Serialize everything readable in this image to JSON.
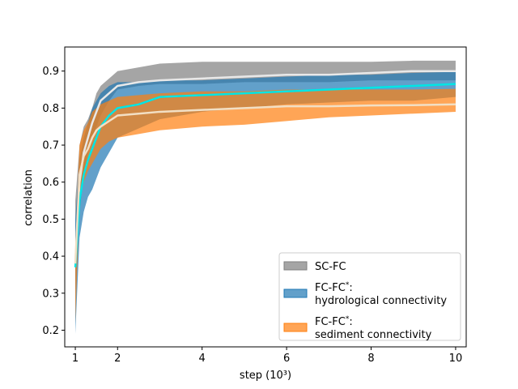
{
  "chart_data": {
    "type": "area",
    "title": "",
    "xlabel": "step (10³)",
    "ylabel": "correlation",
    "xlim": [
      0.75,
      10.25
    ],
    "ylim": [
      0.155,
      0.965
    ],
    "xticks": [
      1,
      2,
      4,
      6,
      8,
      10
    ],
    "yticks": [
      0.2,
      0.3,
      0.4,
      0.5,
      0.6,
      0.7,
      0.8,
      0.9
    ],
    "grid": false,
    "legend_position": "lower-right",
    "series": [
      {
        "name": "SC-FC",
        "legend_line1": "SC-FC",
        "legend_line2": "",
        "fill_color": "#7f7f7f",
        "mean_color": "#e8e8e8",
        "x": [
          1.0,
          1.1,
          1.2,
          1.3,
          1.4,
          1.5,
          1.6,
          1.8,
          2.0,
          2.5,
          3.0,
          4.0,
          5.0,
          6.0,
          7.0,
          8.0,
          9.0,
          10.0
        ],
        "lower": [
          0.3,
          0.52,
          0.62,
          0.68,
          0.72,
          0.75,
          0.78,
          0.82,
          0.85,
          0.86,
          0.865,
          0.865,
          0.87,
          0.87,
          0.87,
          0.875,
          0.875,
          0.875
        ],
        "upper": [
          0.55,
          0.7,
          0.75,
          0.77,
          0.8,
          0.84,
          0.86,
          0.88,
          0.9,
          0.91,
          0.92,
          0.925,
          0.925,
          0.925,
          0.925,
          0.925,
          0.928,
          0.928
        ],
        "mean": [
          0.38,
          0.6,
          0.68,
          0.72,
          0.76,
          0.79,
          0.82,
          0.84,
          0.86,
          0.87,
          0.875,
          0.88,
          0.885,
          0.89,
          0.89,
          0.895,
          0.9,
          0.9
        ]
      },
      {
        "name": "FC-FC*: hydrological connectivity",
        "legend_line1": "FC-FC",
        "legend_line2": "hydrological connectivity",
        "fill_color": "#1f77b4",
        "mean_color": "#00e5e5",
        "x": [
          1.0,
          1.1,
          1.2,
          1.3,
          1.4,
          1.5,
          1.6,
          1.8,
          2.0,
          2.5,
          3.0,
          4.0,
          5.0,
          6.0,
          7.0,
          8.0,
          9.0,
          10.0
        ],
        "lower": [
          0.19,
          0.45,
          0.52,
          0.56,
          0.58,
          0.61,
          0.64,
          0.68,
          0.72,
          0.745,
          0.77,
          0.79,
          0.8,
          0.81,
          0.815,
          0.82,
          0.82,
          0.83
        ],
        "upper": [
          0.5,
          0.66,
          0.72,
          0.76,
          0.8,
          0.82,
          0.84,
          0.86,
          0.87,
          0.87,
          0.875,
          0.875,
          0.88,
          0.885,
          0.89,
          0.89,
          0.895,
          0.898
        ],
        "mean": [
          0.37,
          0.55,
          0.62,
          0.66,
          0.69,
          0.72,
          0.75,
          0.78,
          0.8,
          0.81,
          0.83,
          0.835,
          0.84,
          0.845,
          0.85,
          0.855,
          0.86,
          0.865
        ]
      },
      {
        "name": "FC-FC*: sediment connectivity",
        "legend_line1": "FC-FC",
        "legend_line2": "sediment connectivity",
        "fill_color": "#ff7f0e",
        "mean_color": "#f2dfc4",
        "x": [
          1.0,
          1.1,
          1.2,
          1.3,
          1.4,
          1.5,
          1.6,
          1.8,
          2.0,
          2.5,
          3.0,
          4.0,
          5.0,
          6.0,
          7.0,
          8.0,
          9.0,
          10.0
        ],
        "lower": [
          0.22,
          0.55,
          0.6,
          0.63,
          0.65,
          0.67,
          0.69,
          0.71,
          0.72,
          0.73,
          0.74,
          0.75,
          0.755,
          0.765,
          0.775,
          0.78,
          0.785,
          0.79
        ],
        "upper": [
          0.42,
          0.7,
          0.74,
          0.76,
          0.79,
          0.8,
          0.81,
          0.82,
          0.83,
          0.835,
          0.84,
          0.845,
          0.845,
          0.85,
          0.85,
          0.85,
          0.85,
          0.852
        ],
        "mean": [
          0.38,
          0.62,
          0.67,
          0.69,
          0.72,
          0.74,
          0.75,
          0.765,
          0.78,
          0.785,
          0.79,
          0.795,
          0.8,
          0.805,
          0.805,
          0.807,
          0.808,
          0.81
        ]
      }
    ]
  }
}
